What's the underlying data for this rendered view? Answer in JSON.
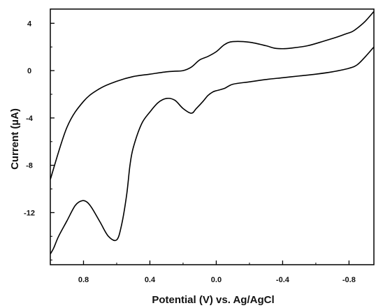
{
  "chart_data": {
    "type": "line",
    "title": "",
    "xlabel": "Potential (V) vs. Ag/AgCl",
    "ylabel": "Current (µA)",
    "xlim": [
      1.0,
      -0.95
    ],
    "ylim": [
      -16.4,
      5.2
    ],
    "x_reversed": true,
    "x_ticks": [
      0.8,
      0.4,
      0.0,
      -0.4,
      -0.8
    ],
    "x_tick_labels": [
      "0.8",
      "0.4",
      "0.0",
      "-0.4",
      "-0.8"
    ],
    "y_ticks": [
      4,
      0,
      -4,
      -8,
      -12
    ],
    "y_tick_labels": [
      "4",
      "0",
      "-4",
      "-8",
      "-12"
    ],
    "grid": false,
    "legend": "none",
    "line_color": "#000000",
    "series": [
      {
        "x": [
          -0.95,
          -0.9,
          -0.86,
          -0.82,
          -0.78,
          -0.72,
          -0.65,
          -0.55,
          -0.45,
          -0.4,
          -0.35,
          -0.3,
          -0.2,
          -0.1,
          -0.05,
          0.0,
          0.05,
          0.1,
          0.15,
          0.2,
          0.25,
          0.3,
          0.4,
          0.5,
          0.6,
          0.7,
          0.8,
          0.9,
          1.0
        ],
        "y": [
          5.0,
          4.2,
          3.7,
          3.3,
          3.1,
          2.8,
          2.5,
          2.1,
          1.9,
          1.85,
          1.9,
          2.1,
          2.4,
          2.45,
          2.2,
          1.6,
          1.2,
          0.9,
          0.3,
          0.0,
          -0.05,
          -0.1,
          -0.3,
          -0.5,
          -0.9,
          -1.5,
          -2.6,
          -4.8,
          -9.2
        ]
      },
      {
        "x": [
          1.0,
          0.98,
          0.95,
          0.9,
          0.85,
          0.81,
          0.78,
          0.75,
          0.7,
          0.65,
          0.6,
          0.57,
          0.54,
          0.52,
          0.5,
          0.45,
          0.4,
          0.35,
          0.3,
          0.25,
          0.2,
          0.15,
          0.12,
          0.08,
          0.05,
          0.02,
          0.0,
          -0.05,
          -0.1,
          -0.2,
          -0.3,
          -0.4,
          -0.5,
          -0.6,
          -0.7,
          -0.8,
          -0.85,
          -0.9,
          -0.95
        ],
        "y": [
          -15.5,
          -15.0,
          -14.0,
          -12.7,
          -11.4,
          -11.0,
          -11.1,
          -11.6,
          -12.8,
          -14.0,
          -14.3,
          -13.0,
          -10.5,
          -8.0,
          -6.5,
          -4.5,
          -3.5,
          -2.7,
          -2.35,
          -2.5,
          -3.2,
          -3.6,
          -3.2,
          -2.6,
          -2.1,
          -1.8,
          -1.7,
          -1.5,
          -1.15,
          -0.95,
          -0.75,
          -0.6,
          -0.45,
          -0.3,
          -0.1,
          0.2,
          0.5,
          1.2,
          2.0
        ]
      }
    ]
  }
}
